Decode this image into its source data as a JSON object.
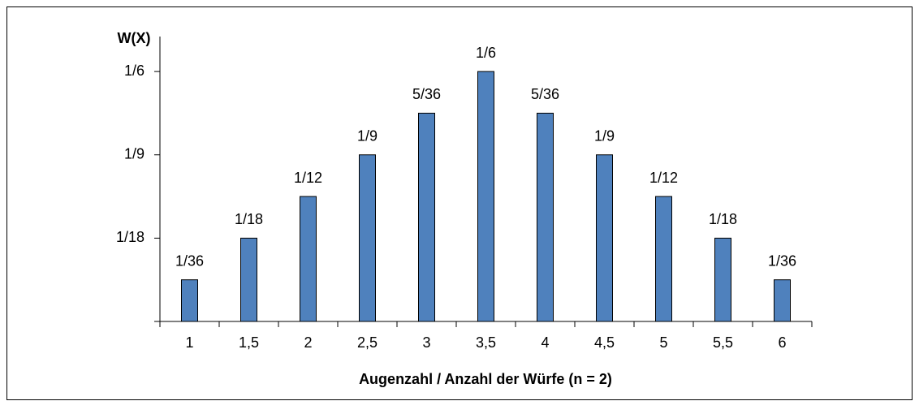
{
  "chart_data": {
    "type": "bar",
    "y_label": "W(X)",
    "x_label": "Augenzahl / Anzahl der Würfe (n = 2)",
    "categories": [
      "1",
      "1,5",
      "2",
      "2,5",
      "3",
      "3,5",
      "4",
      "4,5",
      "5",
      "5,5",
      "6"
    ],
    "values": [
      0.027778,
      0.055556,
      0.083333,
      0.111111,
      0.138889,
      0.166667,
      0.138889,
      0.111111,
      0.083333,
      0.055556,
      0.027778
    ],
    "value_labels": [
      "1/36",
      "1/18",
      "1/12",
      "1/9",
      "5/36",
      "1/6",
      "5/36",
      "1/9",
      "1/12",
      "1/18",
      "1/36"
    ],
    "color": "#4f81bd",
    "ylim": [
      0,
      0.19
    ],
    "yticks": [
      {
        "value": 0.055556,
        "label": "1/18"
      },
      {
        "value": 0.111111,
        "label": "1/9"
      },
      {
        "value": 0.166667,
        "label": "1/6"
      }
    ]
  }
}
